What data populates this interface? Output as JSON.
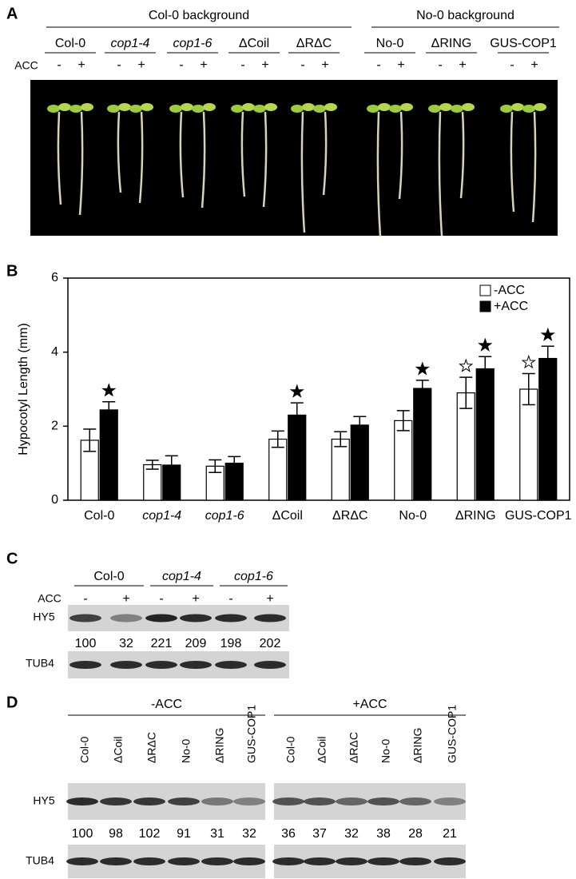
{
  "panel_a": {
    "label": "A",
    "groups": [
      {
        "title": "Col-0 background",
        "lines": [
          "Col-0",
          "cop1-4",
          "cop1-6",
          "ΔCoil",
          "ΔRΔC"
        ]
      },
      {
        "title": "No-0 background",
        "lines": [
          "No-0",
          "ΔRING",
          "GUS-COP1"
        ]
      }
    ],
    "treatment": "ACC",
    "signs": [
      "-",
      "+"
    ]
  },
  "chart_data": {
    "type": "bar",
    "label": "B",
    "ylabel": "Hypocotyl Length (mm)",
    "categories": [
      "Col-0",
      "cop1-4",
      "cop1-6",
      "ΔCoil",
      "ΔRΔC",
      "No-0",
      "ΔRING",
      "GUS-COP1"
    ],
    "series": [
      {
        "name": "-ACC",
        "color": "#ffffff",
        "values": [
          1.62,
          0.96,
          0.92,
          1.65,
          1.65,
          2.15,
          2.9,
          3.0
        ],
        "errors": [
          0.3,
          0.12,
          0.17,
          0.22,
          0.2,
          0.27,
          0.42,
          0.42
        ],
        "significant": [
          false,
          false,
          false,
          false,
          false,
          false,
          true,
          true
        ]
      },
      {
        "name": "+ACC",
        "color": "#000000",
        "values": [
          2.44,
          0.95,
          1.0,
          2.3,
          2.03,
          3.02,
          3.55,
          3.83
        ],
        "errors": [
          0.22,
          0.25,
          0.18,
          0.33,
          0.23,
          0.22,
          0.33,
          0.33
        ],
        "significant": [
          true,
          false,
          false,
          true,
          false,
          true,
          true,
          true
        ]
      }
    ],
    "ylim": [
      0,
      6
    ],
    "yticks": [
      0,
      2,
      4,
      6
    ],
    "legend": "top-right"
  },
  "panel_c": {
    "label": "C",
    "groups": [
      "Col-0",
      "cop1-4",
      "cop1-6"
    ],
    "treatment": "ACC",
    "signs": [
      "-",
      "+"
    ],
    "blots": [
      "HY5",
      "TUB4"
    ],
    "hy5_levels": [
      100,
      32,
      221,
      209,
      198,
      202
    ]
  },
  "panel_d": {
    "label": "D",
    "groups": [
      {
        "title": "-ACC",
        "hy5_levels": [
          100,
          98,
          102,
          91,
          31,
          32
        ]
      },
      {
        "title": "+ACC",
        "hy5_levels": [
          36,
          37,
          32,
          38,
          28,
          21
        ]
      }
    ],
    "lanes": [
      "Col-0",
      "ΔCoil",
      "ΔRΔC",
      "No-0",
      "ΔRING",
      "GUS-COP1"
    ],
    "blots": [
      "HY5",
      "TUB4"
    ]
  }
}
